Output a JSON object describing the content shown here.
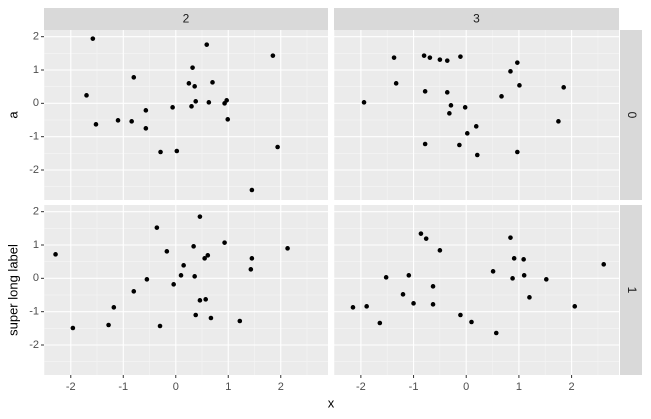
{
  "chart_data": {
    "type": "scatter",
    "xlabel": "x",
    "facet_cols": [
      "2",
      "3"
    ],
    "facet_rows": [
      "0",
      "1"
    ],
    "row_ylabels": [
      "a",
      "super long label"
    ],
    "color": "#000000",
    "grid": true,
    "xlim": [
      -2.51,
      2.9
    ],
    "xticks": [
      -2,
      -1,
      0,
      1,
      2
    ],
    "ylim": [
      -2.9,
      2.2
    ],
    "yticks": [
      -2,
      -1,
      0,
      1,
      2
    ],
    "panels": [
      {
        "x": [
          -1.58,
          -1.7,
          -1.52,
          -1.1,
          -0.8,
          -0.84,
          -0.57,
          -0.57,
          -0.29,
          -0.06,
          0.02,
          0.25,
          0.3,
          0.32,
          0.36,
          0.38,
          0.59,
          0.63,
          0.7,
          0.93,
          0.97,
          0.99,
          1.85,
          1.94,
          1.45
        ],
        "y": [
          1.94,
          0.24,
          -0.63,
          -0.51,
          0.78,
          -0.54,
          -0.21,
          -0.75,
          -1.46,
          -0.12,
          -1.43,
          0.6,
          -0.09,
          1.07,
          0.51,
          0.06,
          1.76,
          0.03,
          0.63,
          0.0,
          0.09,
          -0.48,
          1.43,
          -1.31,
          -2.6
        ]
      },
      {
        "x": [
          -1.94,
          -1.37,
          -1.33,
          -0.8,
          -0.69,
          -0.78,
          -0.78,
          -0.5,
          -0.36,
          -0.36,
          -0.29,
          -0.32,
          -0.11,
          -0.02,
          0.02,
          -0.13,
          0.19,
          0.21,
          0.67,
          0.84,
          0.97,
          1.01,
          0.97,
          1.75,
          1.85
        ],
        "y": [
          0.03,
          1.37,
          0.6,
          1.43,
          1.37,
          0.36,
          -1.22,
          1.31,
          1.28,
          0.33,
          -0.06,
          -0.3,
          1.4,
          -0.12,
          -0.9,
          -1.25,
          -0.69,
          -1.55,
          0.21,
          0.96,
          1.22,
          0.54,
          -1.46,
          -0.54,
          0.48
        ]
      },
      {
        "x": [
          -2.29,
          -1.96,
          -1.28,
          -1.18,
          -0.8,
          -0.55,
          -0.36,
          -0.3,
          -0.17,
          -0.04,
          0.1,
          0.15,
          0.34,
          0.36,
          0.38,
          0.46,
          0.46,
          0.55,
          0.57,
          0.61,
          0.67,
          1.22,
          0.93,
          1.45,
          1.43,
          2.13
        ],
        "y": [
          0.72,
          -1.49,
          -1.4,
          -0.87,
          -0.39,
          -0.03,
          1.52,
          -1.43,
          0.81,
          -0.18,
          0.09,
          0.39,
          0.96,
          0.06,
          -1.1,
          -0.66,
          1.85,
          0.6,
          -0.63,
          0.69,
          -1.19,
          -1.28,
          1.07,
          0.6,
          0.27,
          0.9
        ]
      },
      {
        "x": [
          -2.15,
          -1.89,
          -1.64,
          -1.52,
          -1.2,
          -1.09,
          -1.0,
          -0.86,
          -0.76,
          -0.63,
          -0.63,
          -0.5,
          -0.11,
          0.1,
          0.51,
          0.57,
          0.84,
          0.88,
          0.91,
          1.09,
          1.1,
          1.2,
          1.52,
          2.06,
          2.61
        ],
        "y": [
          -0.87,
          -0.84,
          -1.34,
          0.03,
          -0.48,
          0.09,
          -0.75,
          1.34,
          1.19,
          -0.24,
          -0.78,
          0.84,
          -1.1,
          -1.31,
          0.21,
          -1.64,
          1.22,
          0.0,
          0.6,
          0.57,
          0.09,
          -0.57,
          -0.03,
          -0.84,
          0.42
        ]
      }
    ]
  }
}
